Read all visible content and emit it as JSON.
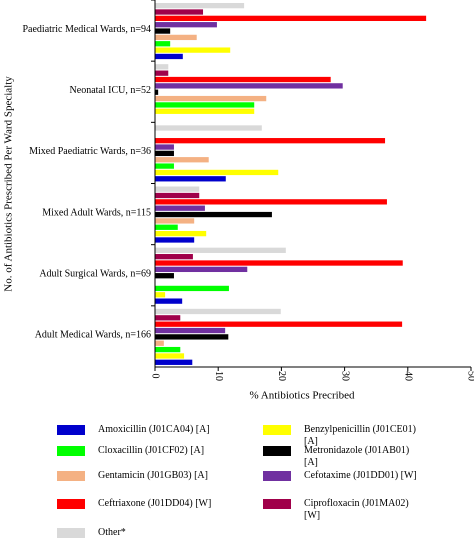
{
  "chart_data": {
    "type": "hbar",
    "xlabel": "% Antibiotics Precribed",
    "ylabel": "No. of Antibiotics Prescribed Per Ward Specialty",
    "categories": [
      "Paediatric Medical Wards, n=94",
      "Neonatal ICU, n=52",
      "Mixed Paediatric Wards, n=36",
      "Mixed Adult Wards, n=115",
      "Adult Surgical Wards, n=69",
      "Adult Medical Wards, n=166"
    ],
    "xlim": [
      0,
      50
    ],
    "xticks": [
      0,
      10,
      20,
      30,
      40,
      50
    ],
    "series": [
      {
        "name": "Amoxicillin (J01CA04) [A]",
        "color": "#0000cc",
        "values": [
          4.4,
          0,
          11.2,
          6.2,
          4.3,
          5.9
        ]
      },
      {
        "name": "Benzylpenicillin (J01CE01) [A]",
        "color": "#ffff00",
        "values": [
          11.9,
          15.7,
          19.5,
          8.1,
          1.6,
          4.6
        ]
      },
      {
        "name": "Cloxacillin (J01CF02) [A]",
        "color": "#00ff00",
        "values": [
          2.4,
          15.7,
          3.0,
          3.6,
          11.7,
          4.0
        ]
      },
      {
        "name": "Metronidazole (J01AB01) [A]",
        "color": "#000000",
        "values": [
          2.4,
          0.5,
          3.0,
          18.5,
          3.0,
          11.6
        ]
      },
      {
        "name": "Gentamicin (J01GB03) [A]",
        "color": "#f4b183",
        "values": [
          6.6,
          17.6,
          8.5,
          6.2,
          0,
          1.4
        ]
      },
      {
        "name": "Cefotaxime (J01DD01) [W]",
        "color": "#7030a0",
        "values": [
          9.8,
          29.7,
          3.0,
          7.9,
          14.6,
          11.1
        ]
      },
      {
        "name": "Ceftriaxone (J01DD04) [W]",
        "color": "#ff0000",
        "values": [
          42.9,
          27.8,
          36.4,
          36.7,
          39.2,
          39.1
        ]
      },
      {
        "name": "Ciprofloxacin (J01MA02) [W]",
        "color": "#a0004a",
        "values": [
          7.6,
          2.1,
          0,
          7.0,
          6.0,
          4.0
        ]
      },
      {
        "name": "Other*",
        "color": "#d9d9d9",
        "values": [
          14.1,
          2.1,
          16.9,
          7.0,
          20.7,
          19.9
        ]
      }
    ]
  }
}
